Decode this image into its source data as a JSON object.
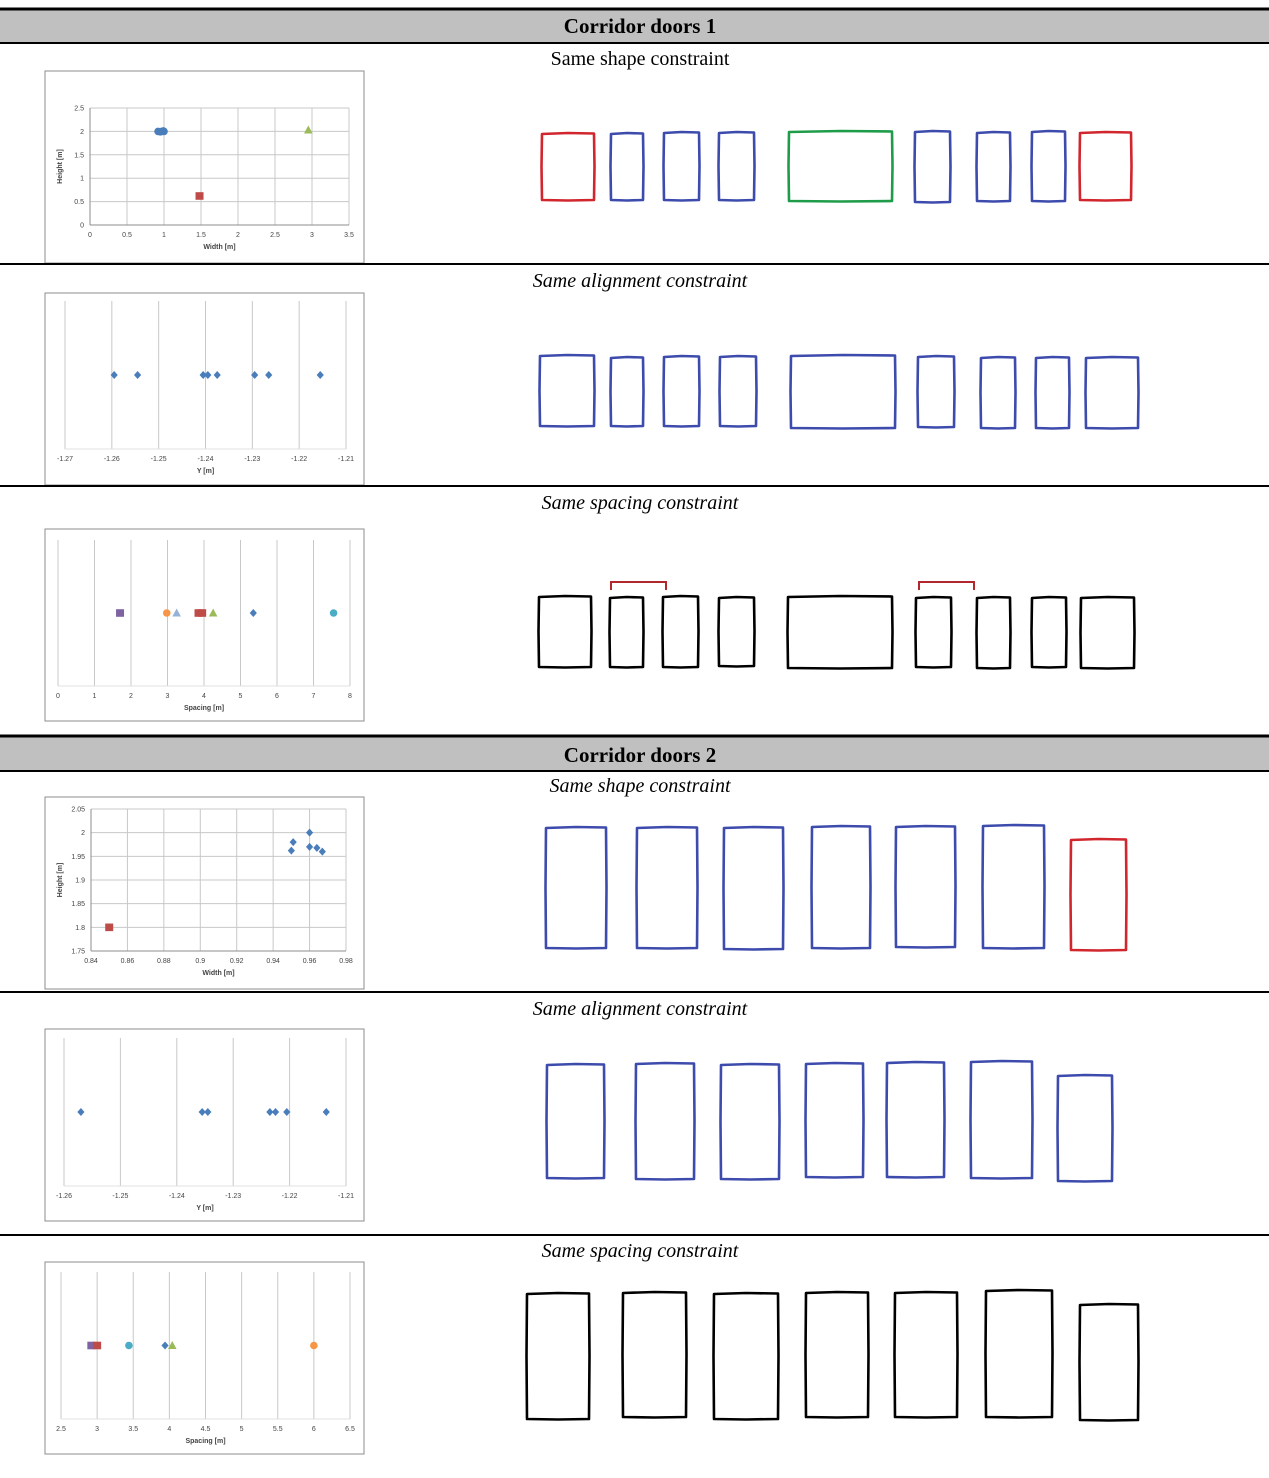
{
  "sections": [
    {
      "title": "Corridor doors 1",
      "rows": [
        {
          "caption": "Same shape constraint",
          "door_colors": [
            "red",
            "blue",
            "blue",
            "blue",
            "green",
            "blue",
            "blue",
            "blue",
            "red"
          ],
          "chart_data": {
            "type": "scatter",
            "xlabel": "Width [m]",
            "ylabel": "Height [m]",
            "xlim": [
              0,
              3.5
            ],
            "ylim": [
              0,
              2.5
            ],
            "xticks": [
              "0",
              "0.5",
              "1",
              "1.5",
              "2",
              "2.5",
              "3",
              "3.5"
            ],
            "yticks": [
              "0",
              "0.5",
              "1",
              "1.5",
              "2",
              "2.5"
            ],
            "grid": true,
            "series": [
              {
                "marker": "circle",
                "color": "#4a7ebb",
                "points": [
                  [
                    0.92,
                    2.0
                  ],
                  [
                    0.95,
                    1.99
                  ],
                  [
                    0.97,
                    2.0
                  ],
                  [
                    0.99,
                    2.01
                  ],
                  [
                    1.0,
                    2.0
                  ]
                ]
              },
              {
                "marker": "square",
                "color": "#be4b48",
                "points": [
                  [
                    1.48,
                    0.62
                  ]
                ]
              },
              {
                "marker": "triangle",
                "color": "#9bbb59",
                "points": [
                  [
                    2.95,
                    2.03
                  ]
                ]
              }
            ]
          }
        },
        {
          "caption": "Same alignment constraint",
          "door_colors": [
            "blue",
            "blue",
            "blue",
            "blue",
            "blue",
            "blue",
            "blue",
            "blue",
            "blue"
          ],
          "chart_data": {
            "type": "scatter",
            "xlabel": "Y [m]",
            "ylabel": "",
            "xlim": [
              -1.27,
              -1.21
            ],
            "xticks": [
              "-1.27",
              "-1.26",
              "-1.25",
              "-1.24",
              "-1.23",
              "-1.22",
              "-1.21"
            ],
            "grid": true,
            "series": [
              {
                "marker": "diamond",
                "color": "#4a7ebb",
                "points": [
                  [
                    -1.2595,
                    0
                  ],
                  [
                    -1.2545,
                    0
                  ],
                  [
                    -1.2405,
                    0
                  ],
                  [
                    -1.2395,
                    0
                  ],
                  [
                    -1.2375,
                    0
                  ],
                  [
                    -1.2295,
                    0
                  ],
                  [
                    -1.2265,
                    0
                  ],
                  [
                    -1.2155,
                    0
                  ]
                ]
              }
            ]
          }
        },
        {
          "caption": "Same spacing constraint",
          "door_colors": [
            "black",
            "black",
            "black",
            "black",
            "black",
            "black",
            "black",
            "black",
            "black"
          ],
          "brackets": [
            1,
            5
          ],
          "chart_data": {
            "type": "scatter",
            "xlabel": "Spacing [m]",
            "ylabel": "",
            "xlim": [
              0,
              8
            ],
            "xticks": [
              "0",
              "1",
              "2",
              "3",
              "4",
              "5",
              "6",
              "7",
              "8"
            ],
            "grid": true,
            "series": [
              {
                "marker": "square",
                "color": "#7e62a1",
                "points": [
                  [
                    1.7,
                    0
                  ]
                ]
              },
              {
                "marker": "circle",
                "color": "#f79646",
                "points": [
                  [
                    2.98,
                    0
                  ]
                ]
              },
              {
                "marker": "triangle",
                "color": "#95b3d7",
                "points": [
                  [
                    3.25,
                    0
                  ]
                ]
              },
              {
                "marker": "square",
                "color": "#be4b48",
                "points": [
                  [
                    3.85,
                    0
                  ],
                  [
                    3.95,
                    0
                  ]
                ]
              },
              {
                "marker": "triangle",
                "color": "#9bbb59",
                "points": [
                  [
                    4.25,
                    0
                  ]
                ]
              },
              {
                "marker": "diamond",
                "color": "#4a7ebb",
                "points": [
                  [
                    5.35,
                    0
                  ]
                ]
              },
              {
                "marker": "circle",
                "color": "#4bacc6",
                "points": [
                  [
                    7.55,
                    0
                  ]
                ]
              }
            ]
          }
        }
      ]
    },
    {
      "title": "Corridor doors 2",
      "rows": [
        {
          "caption": "Same shape constraint",
          "door_colors": [
            "blue",
            "blue",
            "blue",
            "blue",
            "blue",
            "blue",
            "red"
          ],
          "chart_data": {
            "type": "scatter",
            "xlabel": "Width [m]",
            "ylabel": "Height [m]",
            "xlim": [
              0.84,
              0.98
            ],
            "ylim": [
              1.75,
              2.05
            ],
            "xticks": [
              "0.84",
              "0.86",
              "0.88",
              "0.9",
              "0.92",
              "0.94",
              "0.96",
              "0.98"
            ],
            "yticks": [
              "1.75",
              "1.8",
              "1.85",
              "1.9",
              "1.95",
              "2",
              "2.05"
            ],
            "grid": true,
            "series": [
              {
                "marker": "diamond",
                "color": "#4a7ebb",
                "points": [
                  [
                    0.95,
                    1.962
                  ],
                  [
                    0.951,
                    1.98
                  ],
                  [
                    0.96,
                    2.0
                  ],
                  [
                    0.96,
                    1.97
                  ],
                  [
                    0.964,
                    1.968
                  ],
                  [
                    0.967,
                    1.96
                  ]
                ]
              },
              {
                "marker": "square",
                "color": "#be4b48",
                "points": [
                  [
                    0.85,
                    1.8
                  ]
                ]
              }
            ]
          }
        },
        {
          "caption": "Same alignment constraint",
          "door_colors": [
            "blue",
            "blue",
            "blue",
            "blue",
            "blue",
            "blue",
            "blue"
          ],
          "chart_data": {
            "type": "scatter",
            "xlabel": "Y [m]",
            "ylabel": "",
            "xlim": [
              -1.26,
              -1.21
            ],
            "xticks": [
              "-1.26",
              "-1.25",
              "-1.24",
              "-1.23",
              "-1.22",
              "-1.21"
            ],
            "grid": true,
            "series": [
              {
                "marker": "diamond",
                "color": "#4a7ebb",
                "points": [
                  [
                    -1.257,
                    0
                  ],
                  [
                    -1.2355,
                    0
                  ],
                  [
                    -1.2345,
                    0
                  ],
                  [
                    -1.2235,
                    0
                  ],
                  [
                    -1.2225,
                    0
                  ],
                  [
                    -1.2205,
                    0
                  ],
                  [
                    -1.2135,
                    0
                  ]
                ]
              }
            ]
          }
        },
        {
          "caption": "Same spacing constraint",
          "door_colors": [
            "black",
            "black",
            "black",
            "black",
            "black",
            "black",
            "black"
          ],
          "chart_data": {
            "type": "scatter",
            "xlabel": "Spacing [m]",
            "ylabel": "",
            "xlim": [
              2.5,
              6.5
            ],
            "xticks": [
              "2.5",
              "3",
              "3.5",
              "4",
              "4.5",
              "5",
              "5.5",
              "6",
              "6.5"
            ],
            "grid": true,
            "series": [
              {
                "marker": "square",
                "color": "#7e62a1",
                "points": [
                  [
                    2.92,
                    0
                  ]
                ]
              },
              {
                "marker": "square",
                "color": "#be4b48",
                "points": [
                  [
                    3.0,
                    0
                  ]
                ]
              },
              {
                "marker": "circle",
                "color": "#4bacc6",
                "points": [
                  [
                    3.44,
                    0
                  ]
                ]
              },
              {
                "marker": "diamond",
                "color": "#4a7ebb",
                "points": [
                  [
                    3.94,
                    0
                  ]
                ]
              },
              {
                "marker": "triangle",
                "color": "#9bbb59",
                "points": [
                  [
                    4.04,
                    0
                  ]
                ]
              },
              {
                "marker": "circle",
                "color": "#f79646",
                "points": [
                  [
                    6.0,
                    0
                  ]
                ]
              }
            ]
          }
        }
      ]
    }
  ]
}
